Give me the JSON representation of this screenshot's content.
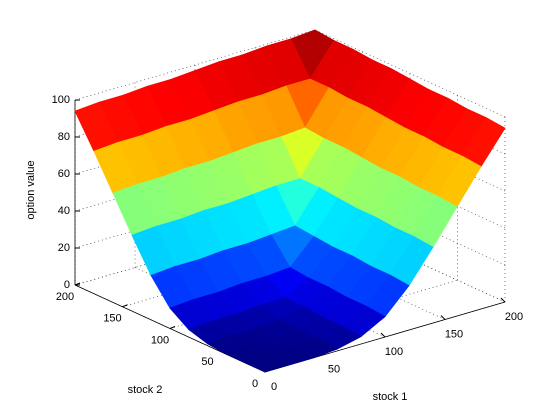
{
  "chart_data": {
    "type": "surface",
    "xlabel": "stock 1",
    "ylabel": "stock 2",
    "zlabel": "option value",
    "x": [
      0,
      20,
      40,
      60,
      80,
      100,
      120,
      140,
      160,
      180,
      200
    ],
    "y": [
      0,
      20,
      40,
      60,
      80,
      100,
      120,
      140,
      160,
      180,
      200
    ],
    "z": [
      [
        0,
        0,
        0,
        1,
        4,
        11,
        24,
        41,
        59,
        77,
        94
      ],
      [
        0,
        1,
        1,
        2,
        5,
        12,
        25,
        42,
        60,
        78,
        95
      ],
      [
        0,
        1,
        1,
        2,
        5,
        12,
        25,
        42,
        60,
        78,
        95
      ],
      [
        1,
        2,
        2,
        3,
        6,
        13,
        26,
        43,
        61,
        79,
        96
      ],
      [
        4,
        5,
        5,
        6,
        6,
        13,
        26,
        43,
        61,
        79,
        96
      ],
      [
        11,
        12,
        12,
        13,
        13,
        14,
        27,
        44,
        62,
        80,
        97
      ],
      [
        24,
        25,
        25,
        26,
        26,
        27,
        28,
        45,
        63,
        81,
        98
      ],
      [
        41,
        42,
        42,
        43,
        43,
        44,
        45,
        45,
        63,
        81,
        98
      ],
      [
        59,
        60,
        60,
        61,
        61,
        62,
        63,
        63,
        64,
        82,
        99
      ],
      [
        77,
        78,
        78,
        79,
        79,
        80,
        81,
        81,
        82,
        82,
        99
      ],
      [
        94,
        95,
        95,
        96,
        96,
        97,
        98,
        98,
        99,
        99,
        100
      ]
    ],
    "xlim": [
      0,
      200
    ],
    "ylim": [
      0,
      200
    ],
    "zlim": [
      0,
      100
    ],
    "xticks": [
      0,
      50,
      100,
      150,
      200
    ],
    "yticks": [
      0,
      50,
      100,
      150,
      200
    ],
    "zticks": [
      0,
      20,
      40,
      60,
      80,
      100
    ],
    "colormap": "jet",
    "grid": true
  }
}
